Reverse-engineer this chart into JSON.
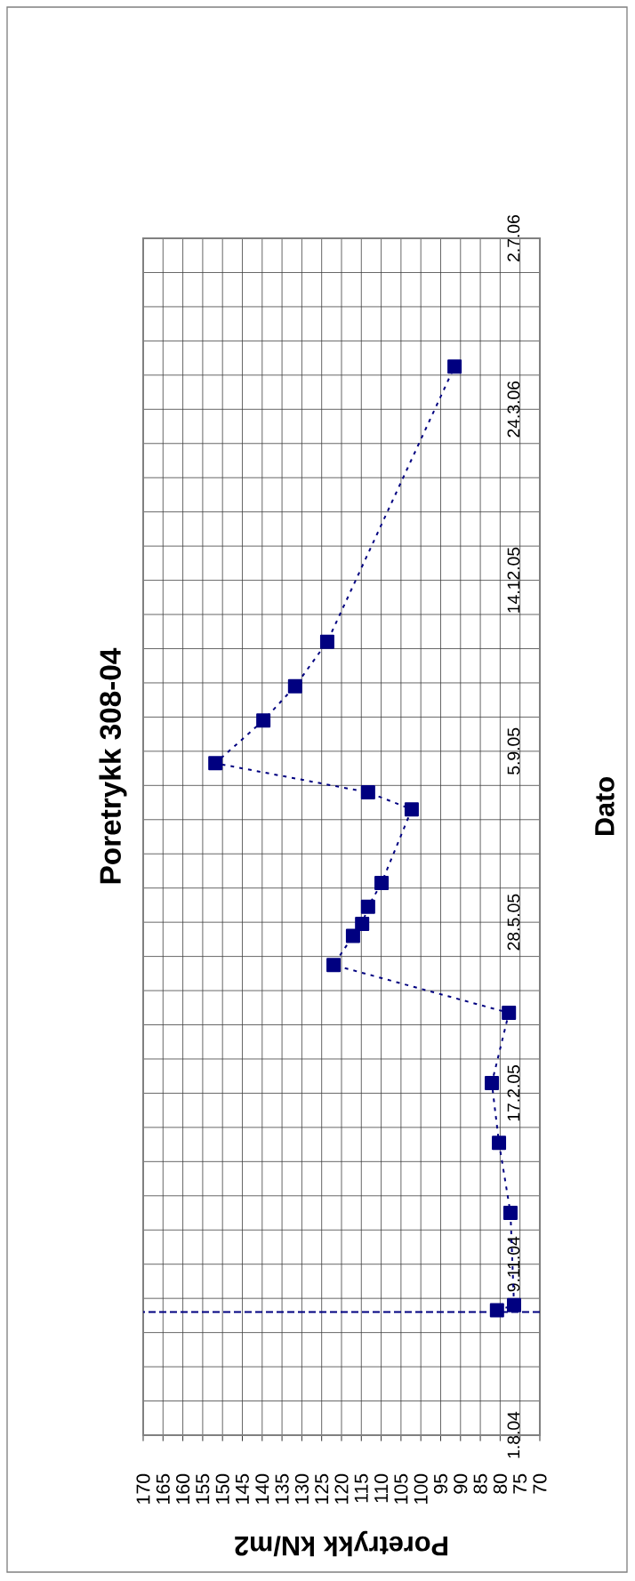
{
  "chart_data": {
    "type": "line",
    "orientation": "horizontal",
    "title": "Poretrykk 308-04",
    "xlabel": "Poretrykk kN/m2",
    "ylabel": "Dato",
    "x": [
      "2004-10-13",
      "2004-10-16",
      "2004-12-09",
      "2005-01-19",
      "2005-02-23",
      "2005-04-05",
      "2005-05-03",
      "2005-05-20",
      "2005-05-27",
      "2005-06-06",
      "2005-06-20",
      "2005-08-02",
      "2005-08-12",
      "2005-08-29",
      "2005-09-23",
      "2005-10-13",
      "2005-11-08",
      "2006-04-18"
    ],
    "values": [
      80.8,
      76.5,
      77.4,
      80.3,
      82.1,
      77.8,
      122.0,
      117.1,
      114.8,
      113.3,
      109.9,
      102.3,
      113.3,
      151.8,
      139.7,
      131.7,
      123.6,
      91.5
    ],
    "color": "#000080",
    "marker": "square",
    "line_style": "dotted",
    "xlim": [
      170,
      70
    ],
    "xticks": [
      70,
      75,
      80,
      85,
      90,
      95,
      100,
      105,
      110,
      115,
      120,
      125,
      130,
      135,
      140,
      145,
      150,
      155,
      160,
      165,
      170
    ],
    "ylim": [
      "2004-08-01",
      "2006-07-02"
    ],
    "yticks": [
      {
        "value": "2004-08-01",
        "label": "1.8.04"
      },
      {
        "value": "2004-11-09",
        "label": "9.11.04"
      },
      {
        "value": "2005-02-17",
        "label": "17.2.05"
      },
      {
        "value": "2005-05-28",
        "label": "28.5.05"
      },
      {
        "value": "2005-09-05",
        "label": "5.9.05"
      },
      {
        "value": "2005-12-14",
        "label": "14.12.05"
      },
      {
        "value": "2006-03-24",
        "label": "24.3.06"
      },
      {
        "value": "2006-07-02",
        "label": "2.7.06"
      }
    ],
    "ref_lines": [
      {
        "axis": "y",
        "value": "2004-10-12",
        "color": "#000080",
        "line_style": "dashed"
      }
    ],
    "grid": true
  }
}
